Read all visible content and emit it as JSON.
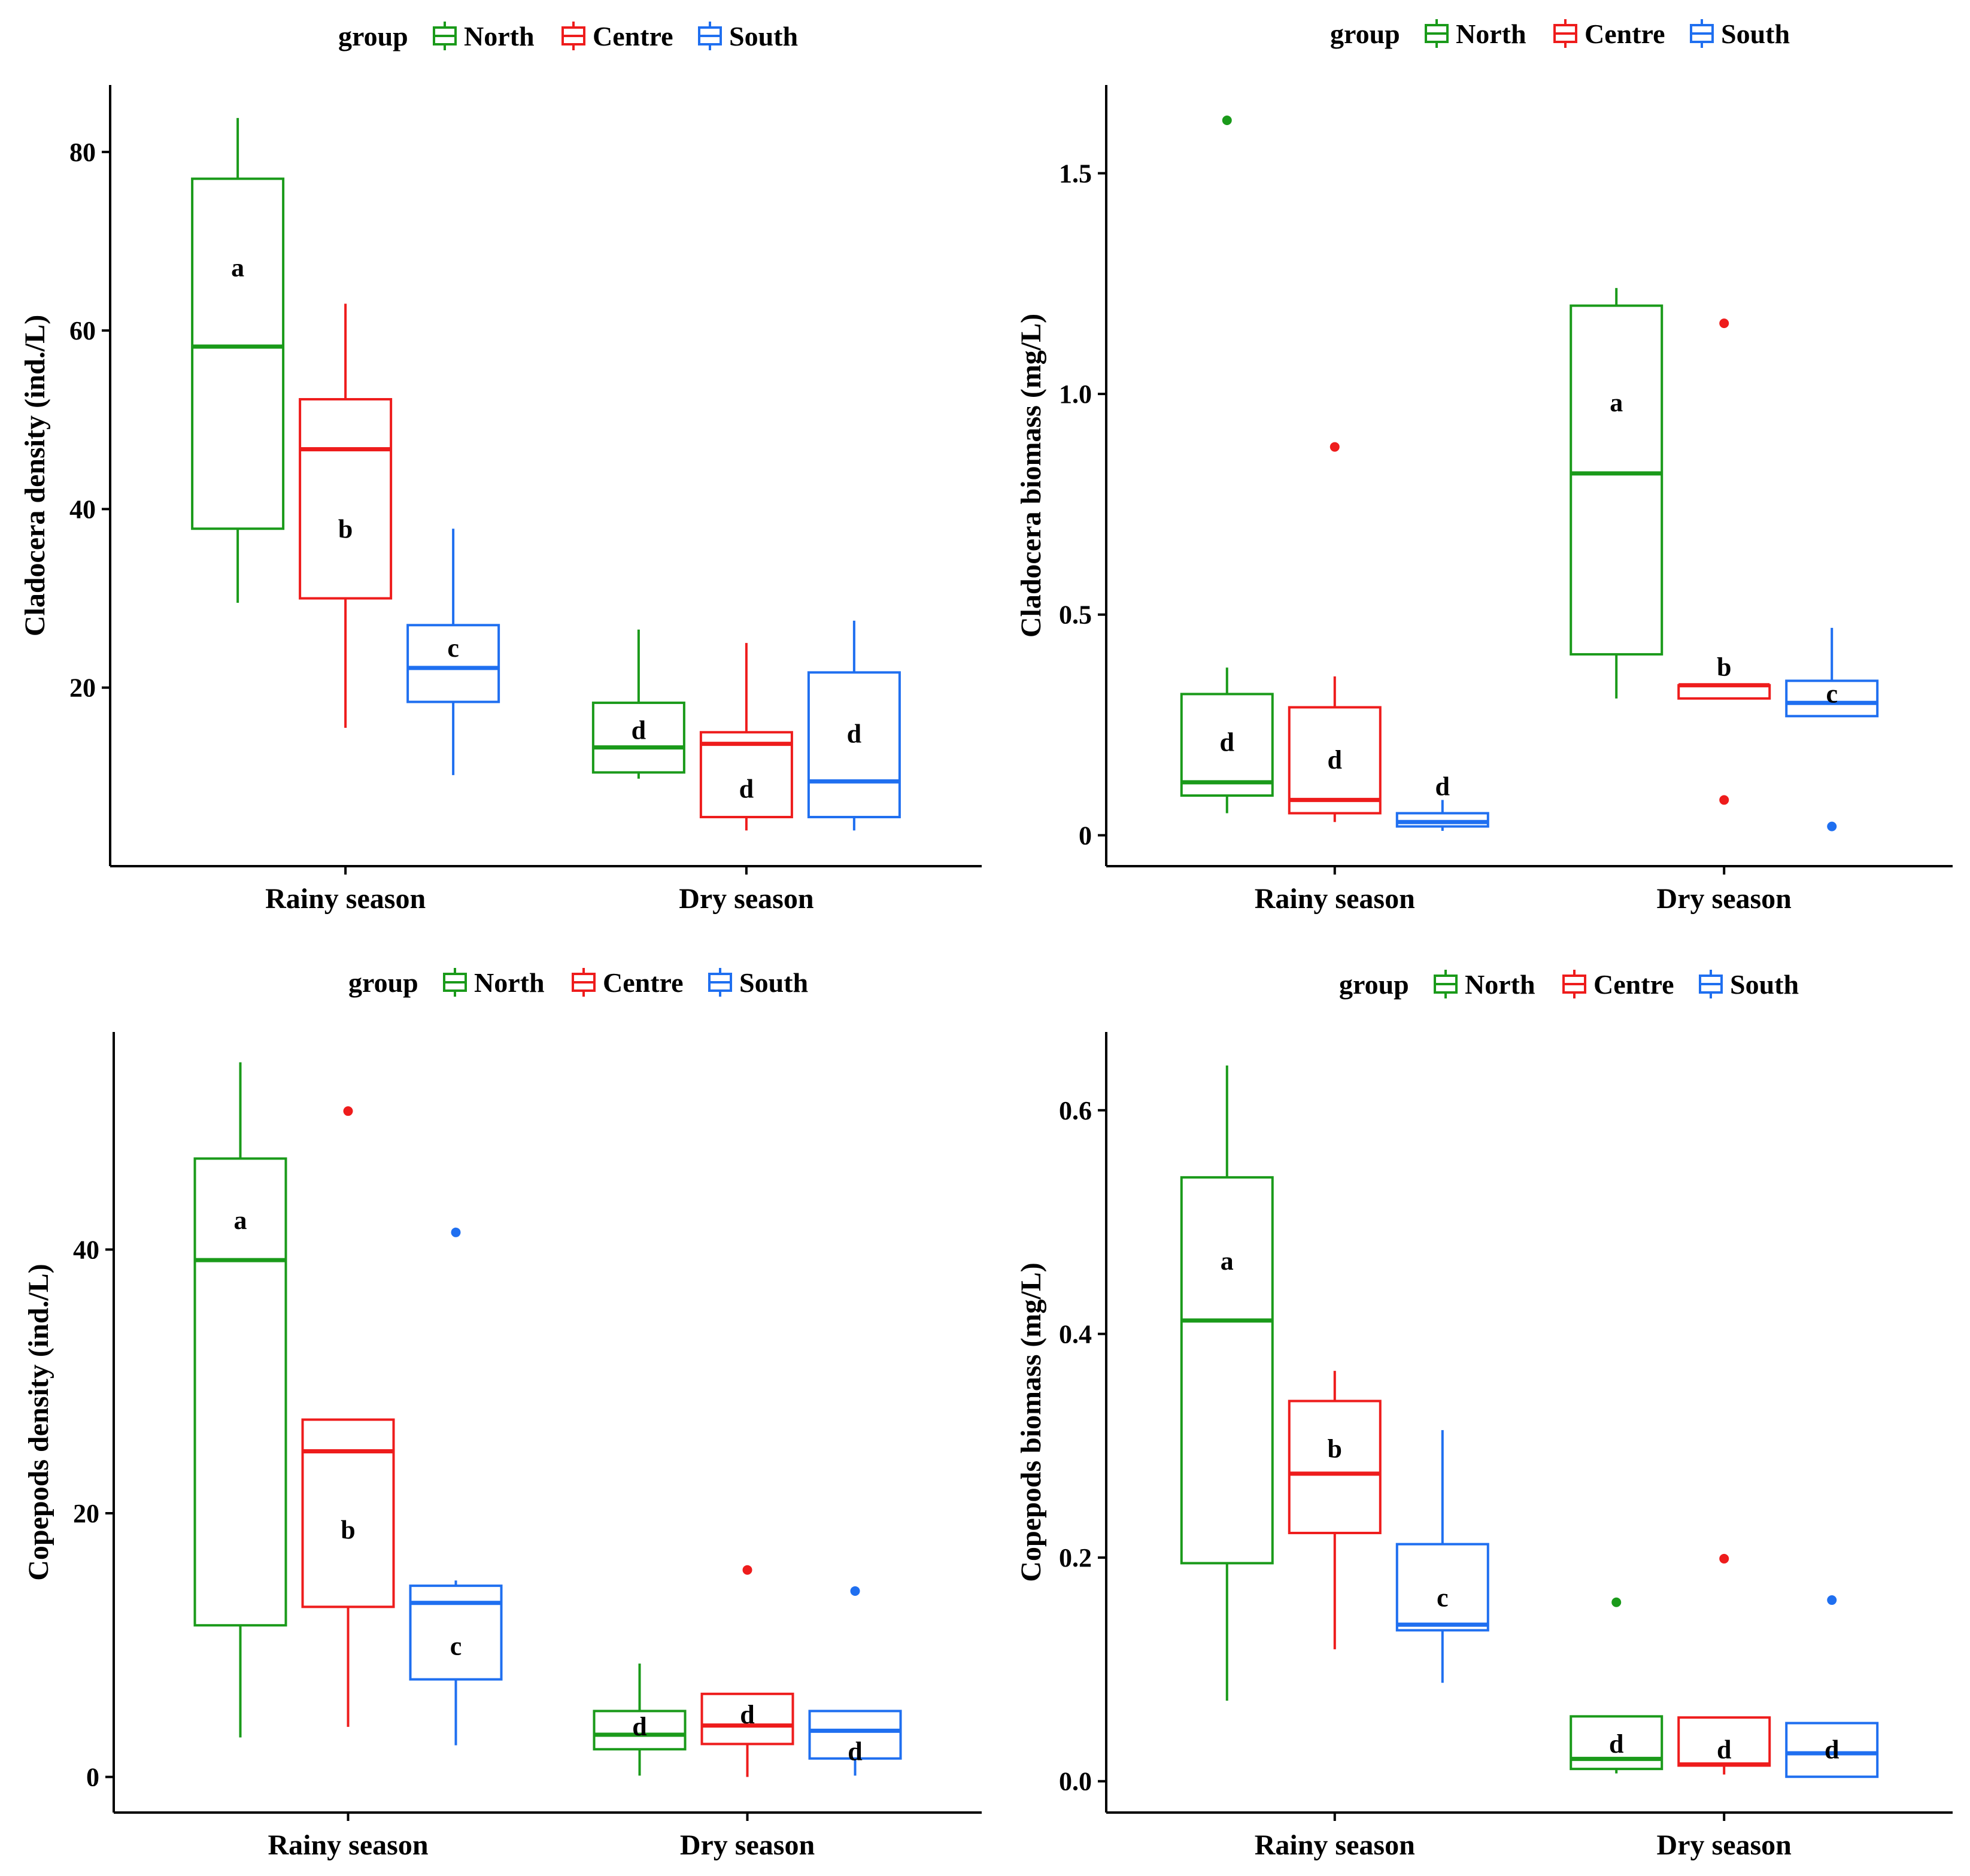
{
  "figure": {
    "groups": [
      "North",
      "Centre",
      "South"
    ],
    "legend_title": "group",
    "colors": {
      "North": "#1a9a1a",
      "Centre": "#ee1c1c",
      "South": "#1f6ff0"
    }
  },
  "chart_data": [
    {
      "type": "box",
      "title": "",
      "xlabel": "",
      "ylabel": "Cladocera density (ind./L)",
      "categories": [
        "Rainy season",
        "Dry season"
      ],
      "ylim": [
        0,
        87.5
      ],
      "yticks": [
        20,
        40,
        60,
        80
      ],
      "yticklabels": [
        "20",
        "40",
        "60",
        "80"
      ],
      "legend": {
        "title": "group",
        "entries": [
          "North",
          "Centre",
          "South"
        ],
        "position": "top"
      },
      "boxes": [
        {
          "category": "Rainy season",
          "group": "North",
          "whisker_low": 29.5,
          "q1": 37.8,
          "median": 58.2,
          "q3": 77.0,
          "whisker_high": 83.8,
          "outliers": [],
          "letter": "a",
          "letter_y": 67.0
        },
        {
          "category": "Rainy season",
          "group": "Centre",
          "whisker_low": 15.5,
          "q1": 30.0,
          "median": 46.7,
          "q3": 52.3,
          "whisker_high": 63.0,
          "outliers": [],
          "letter": "b",
          "letter_y": 37.7
        },
        {
          "category": "Rainy season",
          "group": "South",
          "whisker_low": 10.2,
          "q1": 18.4,
          "median": 22.2,
          "q3": 27.0,
          "whisker_high": 37.8,
          "outliers": [],
          "letter": "c",
          "letter_y": 24.4
        },
        {
          "category": "Dry season",
          "group": "North",
          "whisker_low": 9.8,
          "q1": 10.5,
          "median": 13.3,
          "q3": 18.3,
          "whisker_high": 26.5,
          "outliers": [],
          "letter": "d",
          "letter_y": 15.2
        },
        {
          "category": "Dry season",
          "group": "Centre",
          "whisker_low": 4.0,
          "q1": 5.5,
          "median": 13.7,
          "q3": 15.0,
          "whisker_high": 25.0,
          "outliers": [],
          "letter": "d",
          "letter_y": 8.6
        },
        {
          "category": "Dry season",
          "group": "South",
          "whisker_low": 4.0,
          "q1": 5.5,
          "median": 9.5,
          "q3": 21.7,
          "whisker_high": 27.5,
          "outliers": [],
          "letter": "d",
          "letter_y": 14.8
        }
      ]
    },
    {
      "type": "box",
      "title": "",
      "xlabel": "",
      "ylabel": "Cladocera biomass (mg/L)",
      "categories": [
        "Rainy season",
        "Dry season"
      ],
      "ylim": [
        -0.07,
        1.7
      ],
      "yticks": [
        0,
        0.5,
        1.0,
        1.5
      ],
      "yticklabels": [
        "0",
        "0.5",
        "1.0",
        "1.5"
      ],
      "legend": {
        "title": "group",
        "entries": [
          "North",
          "Centre",
          "South"
        ],
        "position": "top"
      },
      "boxes": [
        {
          "category": "Rainy season",
          "group": "North",
          "whisker_low": 0.05,
          "q1": 0.09,
          "median": 0.12,
          "q3": 0.32,
          "whisker_high": 0.38,
          "outliers": [
            1.62
          ],
          "letter": "d",
          "letter_y": 0.21
        },
        {
          "category": "Rainy season",
          "group": "Centre",
          "whisker_low": 0.03,
          "q1": 0.05,
          "median": 0.08,
          "q3": 0.29,
          "whisker_high": 0.36,
          "outliers": [
            0.88
          ],
          "letter": "d",
          "letter_y": 0.17
        },
        {
          "category": "Rainy season",
          "group": "South",
          "whisker_low": 0.01,
          "q1": 0.02,
          "median": 0.03,
          "q3": 0.05,
          "whisker_high": 0.08,
          "outliers": [],
          "letter": "d",
          "letter_y": 0.11
        },
        {
          "category": "Dry season",
          "group": "North",
          "whisker_low": 0.31,
          "q1": 0.41,
          "median": 0.82,
          "q3": 1.2,
          "whisker_high": 1.24,
          "outliers": [],
          "letter": "a",
          "letter_y": 0.98
        },
        {
          "category": "Dry season",
          "group": "Centre",
          "whisker_low": 0.31,
          "q1": 0.31,
          "median": 0.34,
          "q3": 0.34,
          "whisker_high": 0.34,
          "outliers": [
            1.16,
            0.08
          ],
          "letter": "b",
          "letter_y": 0.38
        },
        {
          "category": "Dry season",
          "group": "South",
          "whisker_low": 0.27,
          "q1": 0.27,
          "median": 0.3,
          "q3": 0.35,
          "whisker_high": 0.47,
          "outliers": [
            0.02
          ],
          "letter": "c",
          "letter_y": 0.32
        }
      ]
    },
    {
      "type": "box",
      "title": "",
      "xlabel": "",
      "ylabel": "Copepods density (ind./L)",
      "categories": [
        "Rainy season",
        "Dry season"
      ],
      "ylim": [
        -2.7,
        56.5
      ],
      "yticks": [
        0,
        20,
        40
      ],
      "yticklabels": [
        "0",
        "20",
        "40"
      ],
      "legend": {
        "title": "group",
        "entries": [
          "North",
          "Centre",
          "South"
        ],
        "position": "top"
      },
      "boxes": [
        {
          "category": "Rainy season",
          "group": "North",
          "whisker_low": 3.0,
          "q1": 11.5,
          "median": 39.2,
          "q3": 46.9,
          "whisker_high": 54.2,
          "outliers": [],
          "letter": "a",
          "letter_y": 42.2
        },
        {
          "category": "Rainy season",
          "group": "Centre",
          "whisker_low": 3.8,
          "q1": 12.9,
          "median": 24.7,
          "q3": 27.1,
          "whisker_high": 27.1,
          "outliers": [
            50.5
          ],
          "letter": "b",
          "letter_y": 18.7
        },
        {
          "category": "Rainy season",
          "group": "South",
          "whisker_low": 2.4,
          "q1": 7.4,
          "median": 13.2,
          "q3": 14.5,
          "whisker_high": 14.9,
          "outliers": [
            41.3
          ],
          "letter": "c",
          "letter_y": 9.9
        },
        {
          "category": "Dry season",
          "group": "North",
          "whisker_low": 0.1,
          "q1": 2.1,
          "median": 3.2,
          "q3": 5.0,
          "whisker_high": 8.6,
          "outliers": [],
          "letter": "d",
          "letter_y": 3.8
        },
        {
          "category": "Dry season",
          "group": "Centre",
          "whisker_low": 0.0,
          "q1": 2.5,
          "median": 3.9,
          "q3": 6.3,
          "whisker_high": 6.3,
          "outliers": [
            15.7
          ],
          "letter": "d",
          "letter_y": 4.7
        },
        {
          "category": "Dry season",
          "group": "South",
          "whisker_low": 0.1,
          "q1": 1.4,
          "median": 3.5,
          "q3": 5.0,
          "whisker_high": 5.0,
          "outliers": [
            14.1
          ],
          "letter": "d",
          "letter_y": 1.9
        }
      ]
    },
    {
      "type": "box",
      "title": "",
      "xlabel": "",
      "ylabel": "Copepods biomass (mg/L)",
      "categories": [
        "Rainy season",
        "Dry season"
      ],
      "ylim": [
        -0.028,
        0.67
      ],
      "yticks": [
        0.0,
        0.2,
        0.4,
        0.6
      ],
      "yticklabels": [
        "0.0",
        "0.2",
        "0.4",
        "0.6"
      ],
      "legend": {
        "title": "group",
        "entries": [
          "North",
          "Centre",
          "South"
        ],
        "position": "top"
      },
      "boxes": [
        {
          "category": "Rainy season",
          "group": "North",
          "whisker_low": 0.072,
          "q1": 0.195,
          "median": 0.412,
          "q3": 0.54,
          "whisker_high": 0.64,
          "outliers": [],
          "letter": "a",
          "letter_y": 0.465
        },
        {
          "category": "Rainy season",
          "group": "Centre",
          "whisker_low": 0.118,
          "q1": 0.222,
          "median": 0.275,
          "q3": 0.34,
          "whisker_high": 0.367,
          "outliers": [],
          "letter": "b",
          "letter_y": 0.297
        },
        {
          "category": "Rainy season",
          "group": "South",
          "whisker_low": 0.088,
          "q1": 0.135,
          "median": 0.14,
          "q3": 0.212,
          "whisker_high": 0.314,
          "outliers": [],
          "letter": "c",
          "letter_y": 0.164
        },
        {
          "category": "Dry season",
          "group": "North",
          "whisker_low": 0.007,
          "q1": 0.011,
          "median": 0.02,
          "q3": 0.058,
          "whisker_high": 0.058,
          "outliers": [
            0.16
          ],
          "letter": "d",
          "letter_y": 0.033
        },
        {
          "category": "Dry season",
          "group": "Centre",
          "whisker_low": 0.006,
          "q1": 0.014,
          "median": 0.015,
          "q3": 0.057,
          "whisker_high": 0.057,
          "outliers": [
            0.199
          ],
          "letter": "d",
          "letter_y": 0.028
        },
        {
          "category": "Dry season",
          "group": "South",
          "whisker_low": 0.004,
          "q1": 0.004,
          "median": 0.025,
          "q3": 0.052,
          "whisker_high": 0.052,
          "outliers": [
            0.162
          ],
          "letter": "d",
          "letter_y": 0.028
        }
      ]
    }
  ]
}
